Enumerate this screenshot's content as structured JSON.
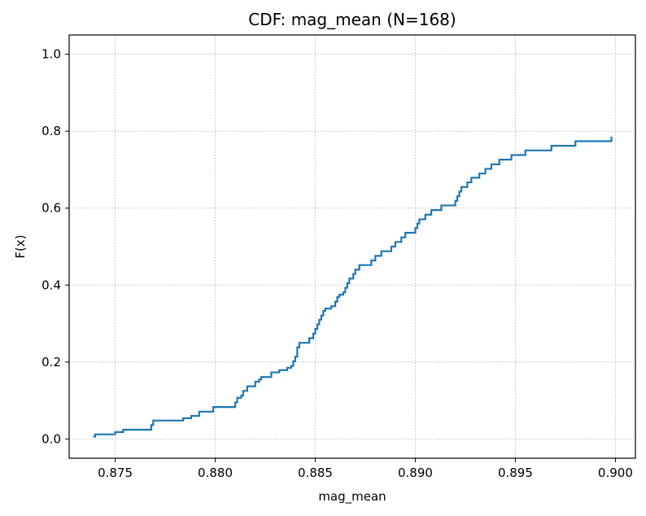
{
  "chart_data": {
    "type": "line",
    "step": true,
    "title": "CDF: mag_mean  (N=168)",
    "xlabel": "mag_mean",
    "ylabel": "F(x)",
    "xlim": [
      0.8727,
      0.901
    ],
    "ylim": [
      -0.05,
      1.05
    ],
    "xticks": [
      0.875,
      0.88,
      0.885,
      0.89,
      0.895,
      0.9
    ],
    "xtick_labels": [
      "0.875",
      "0.880",
      "0.885",
      "0.890",
      "0.895",
      "0.900"
    ],
    "yticks": [
      0.0,
      0.2,
      0.4,
      0.6,
      0.8,
      1.0
    ],
    "ytick_labels": [
      "0.0",
      "0.2",
      "0.4",
      "0.6",
      "0.8",
      "1.0"
    ],
    "grid": true,
    "line_color": "#1f77b4",
    "series": [
      {
        "x": [
          0.8739,
          0.874,
          0.875,
          0.8754,
          0.8768,
          0.8769,
          0.8784,
          0.8788,
          0.8792,
          0.8799,
          0.881,
          0.8811,
          0.8813,
          0.8814,
          0.8816,
          0.882,
          0.8822,
          0.8823,
          0.8828,
          0.8832,
          0.8836,
          0.8838,
          0.8839,
          0.884,
          0.8841,
          0.8841,
          0.8842,
          0.8847,
          0.8849,
          0.885,
          0.885,
          0.8851,
          0.8852,
          0.8853,
          0.8854,
          0.8855,
          0.8858,
          0.886,
          0.886,
          0.8861,
          0.8862,
          0.8864,
          0.8865,
          0.8866,
          0.8867,
          0.8869,
          0.887,
          0.8872,
          0.8878,
          0.888,
          0.8883,
          0.8888,
          0.889,
          0.8893,
          0.8895,
          0.89,
          0.8901,
          0.8902,
          0.8905,
          0.8908,
          0.8913,
          0.892,
          0.8921,
          0.8922,
          0.8923,
          0.8926,
          0.8928,
          0.8932,
          0.8935,
          0.8938,
          0.8942,
          0.8948,
          0.8955,
          0.8968,
          0.898,
          0.8998
        ],
        "y": [
          0.006,
          0.012,
          0.018,
          0.024,
          0.036,
          0.048,
          0.054,
          0.06,
          0.071,
          0.083,
          0.095,
          0.107,
          0.113,
          0.125,
          0.137,
          0.149,
          0.155,
          0.161,
          0.173,
          0.179,
          0.185,
          0.19,
          0.202,
          0.214,
          0.226,
          0.238,
          0.25,
          0.262,
          0.274,
          0.28,
          0.286,
          0.298,
          0.31,
          0.321,
          0.333,
          0.339,
          0.345,
          0.351,
          0.357,
          0.369,
          0.375,
          0.381,
          0.393,
          0.405,
          0.417,
          0.429,
          0.44,
          0.452,
          0.464,
          0.476,
          0.488,
          0.5,
          0.512,
          0.524,
          0.536,
          0.548,
          0.56,
          0.571,
          0.583,
          0.595,
          0.607,
          0.619,
          0.631,
          0.643,
          0.655,
          0.667,
          0.679,
          0.69,
          0.702,
          0.714,
          0.726,
          0.738,
          0.75,
          0.762,
          0.774,
          0.786
        ]
      }
    ]
  }
}
